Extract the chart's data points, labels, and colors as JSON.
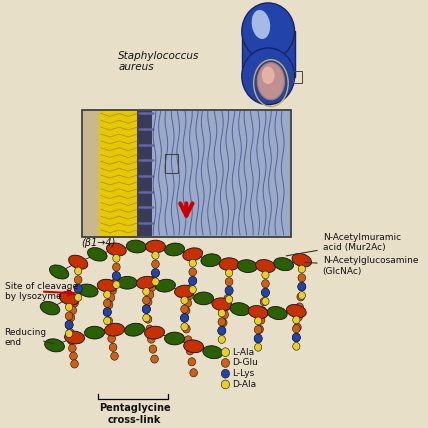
{
  "bg_color": "#e8dfc8",
  "bacterium_label": "Staphylococcus\naureus",
  "n_acetylmuramic_label": "N-Acetylmuramic\nacid (Mur2Ac)",
  "n_acetylglucosamine_label": "N-Acetylglucosamine\n(GlcNAc)",
  "beta_label": "(β1→4)",
  "site_cleavage_label": "Site of cleavage\nby lysozyme",
  "reducing_end_label": "Reducing\nend",
  "pentaglycine_label": "Pentaglycine\ncross-link",
  "lala_label": "L-Ala",
  "dglu_label": "D-Glu",
  "llys_label": "L-Lys",
  "dala_label": "D-Ala",
  "mur2ac_color": "#c83000",
  "glcnac_color": "#2a6000",
  "yellow_col": "#e8d020",
  "blue_col": "#2244aa",
  "orange_col": "#d06010",
  "box_bg": "#b8c8e0",
  "yellow_layer": "#e8c800",
  "dark_divider": "#303050",
  "fiber_bg": "#8898b8",
  "bact_blue": "#2244aa",
  "bact_highlight": "#aaccee",
  "septum_color": "#c09090"
}
